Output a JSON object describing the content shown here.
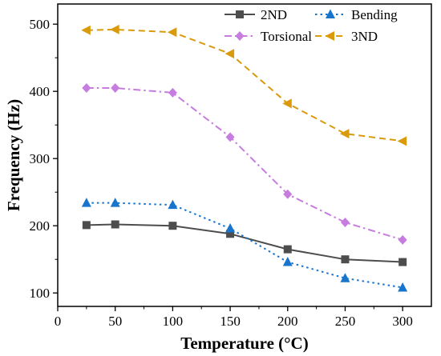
{
  "chart_data": {
    "type": "line",
    "title": "",
    "xlabel": "Temperature (°C)",
    "ylabel": "Frequency (Hz)",
    "xlim": [
      0,
      325
    ],
    "ylim": [
      80,
      530
    ],
    "x_ticks": [
      0,
      50,
      100,
      150,
      200,
      250,
      300
    ],
    "y_ticks": [
      100,
      200,
      300,
      400,
      500
    ],
    "grid": false,
    "legend_position": "top-right",
    "x": [
      25,
      50,
      100,
      150,
      200,
      250,
      300
    ],
    "series": [
      {
        "name": "2ND",
        "values": [
          201,
          202,
          200,
          188,
          165,
          150,
          146
        ],
        "color": "#4d4d4d",
        "marker": "square",
        "line_style": "solid"
      },
      {
        "name": "Bending",
        "values": [
          234,
          234,
          231,
          196,
          146,
          122,
          108
        ],
        "color": "#1874cd",
        "marker": "triangle-up",
        "line_style": "dotted"
      },
      {
        "name": "Torsional",
        "values": [
          405,
          405,
          398,
          332,
          247,
          205,
          179
        ],
        "color": "#c77cdf",
        "marker": "diamond",
        "line_style": "dash-dot"
      },
      {
        "name": "3ND",
        "values": [
          491,
          492,
          488,
          456,
          382,
          337,
          326
        ],
        "color": "#d99a0b",
        "marker": "triangle-left",
        "line_style": "dashed"
      }
    ]
  }
}
